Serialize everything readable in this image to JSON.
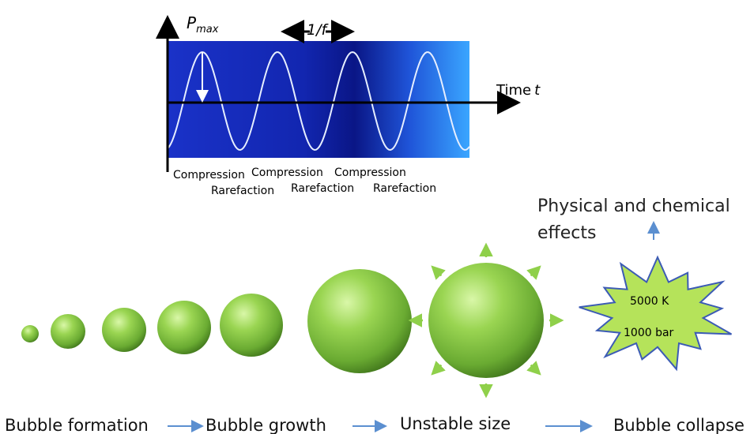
{
  "wave_panel": {
    "pmax_label": "P",
    "pmax_subscript": "max",
    "period_label": "1/f",
    "time_label": "Time",
    "time_symbol": "t",
    "compression_labels": [
      "Compression",
      "Compression",
      "Compression"
    ],
    "rarefaction_labels": [
      "Rarefaction",
      "Rarefaction",
      "Rarefaction"
    ],
    "colors": {
      "band_dark": "#0a1a8c",
      "band_mid": "#1e3ae0",
      "band_light": "#3aa0ff",
      "wave": "#e6eeff"
    }
  },
  "effects": {
    "line1": "Physical and chemical",
    "line2": "effects"
  },
  "collapse": {
    "temperature": "5000 K",
    "pressure": "1000 bar",
    "fill_color": "#b5e35a"
  },
  "stages": {
    "formation": "Bubble formation",
    "growth": "Bubble growth",
    "unstable": "Unstable size",
    "collapse": "Bubble collapse"
  },
  "colors": {
    "bubble_light": "#c7f08a",
    "bubble_mid": "#7cc23e",
    "bubble_dark": "#3f7a1c",
    "arrow_blue": "#5b8fd0",
    "arrow_green": "#8fd04a"
  }
}
